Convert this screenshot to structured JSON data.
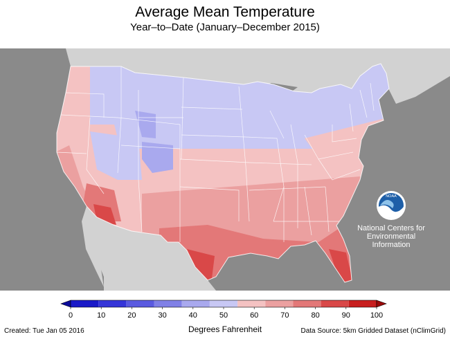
{
  "header": {
    "title": "Average Mean Temperature",
    "subtitle": "Year–to–Date (January–December 2015)"
  },
  "legend": {
    "label": "Degrees Fahrenheit",
    "min": 0,
    "max": 100,
    "ticks": [
      "0",
      "10",
      "20",
      "30",
      "40",
      "50",
      "60",
      "70",
      "80",
      "90",
      "100"
    ],
    "colors": [
      "#1a1ac8",
      "#3535d8",
      "#5a5ae0",
      "#8080e6",
      "#a9a9ee",
      "#c8c8f4",
      "#f4c2c2",
      "#eba0a0",
      "#e37878",
      "#d94848",
      "#c81e1e"
    ],
    "below_color": "#0a0a9a",
    "above_color": "#9a0a0a"
  },
  "branding": {
    "logo_text": "NOAA",
    "org_name_lines": [
      "National Centers for",
      "Environmental",
      "Information"
    ]
  },
  "footer": {
    "created": "Created: Tue Jan 05 2016",
    "source": "Data Source: 5km Gridded Dataset (nClimGrid)"
  },
  "map": {
    "ocean_color": "#8a8a8a",
    "land_outside_color": "#d2d2d2",
    "state_border_color": "#ffffff"
  }
}
